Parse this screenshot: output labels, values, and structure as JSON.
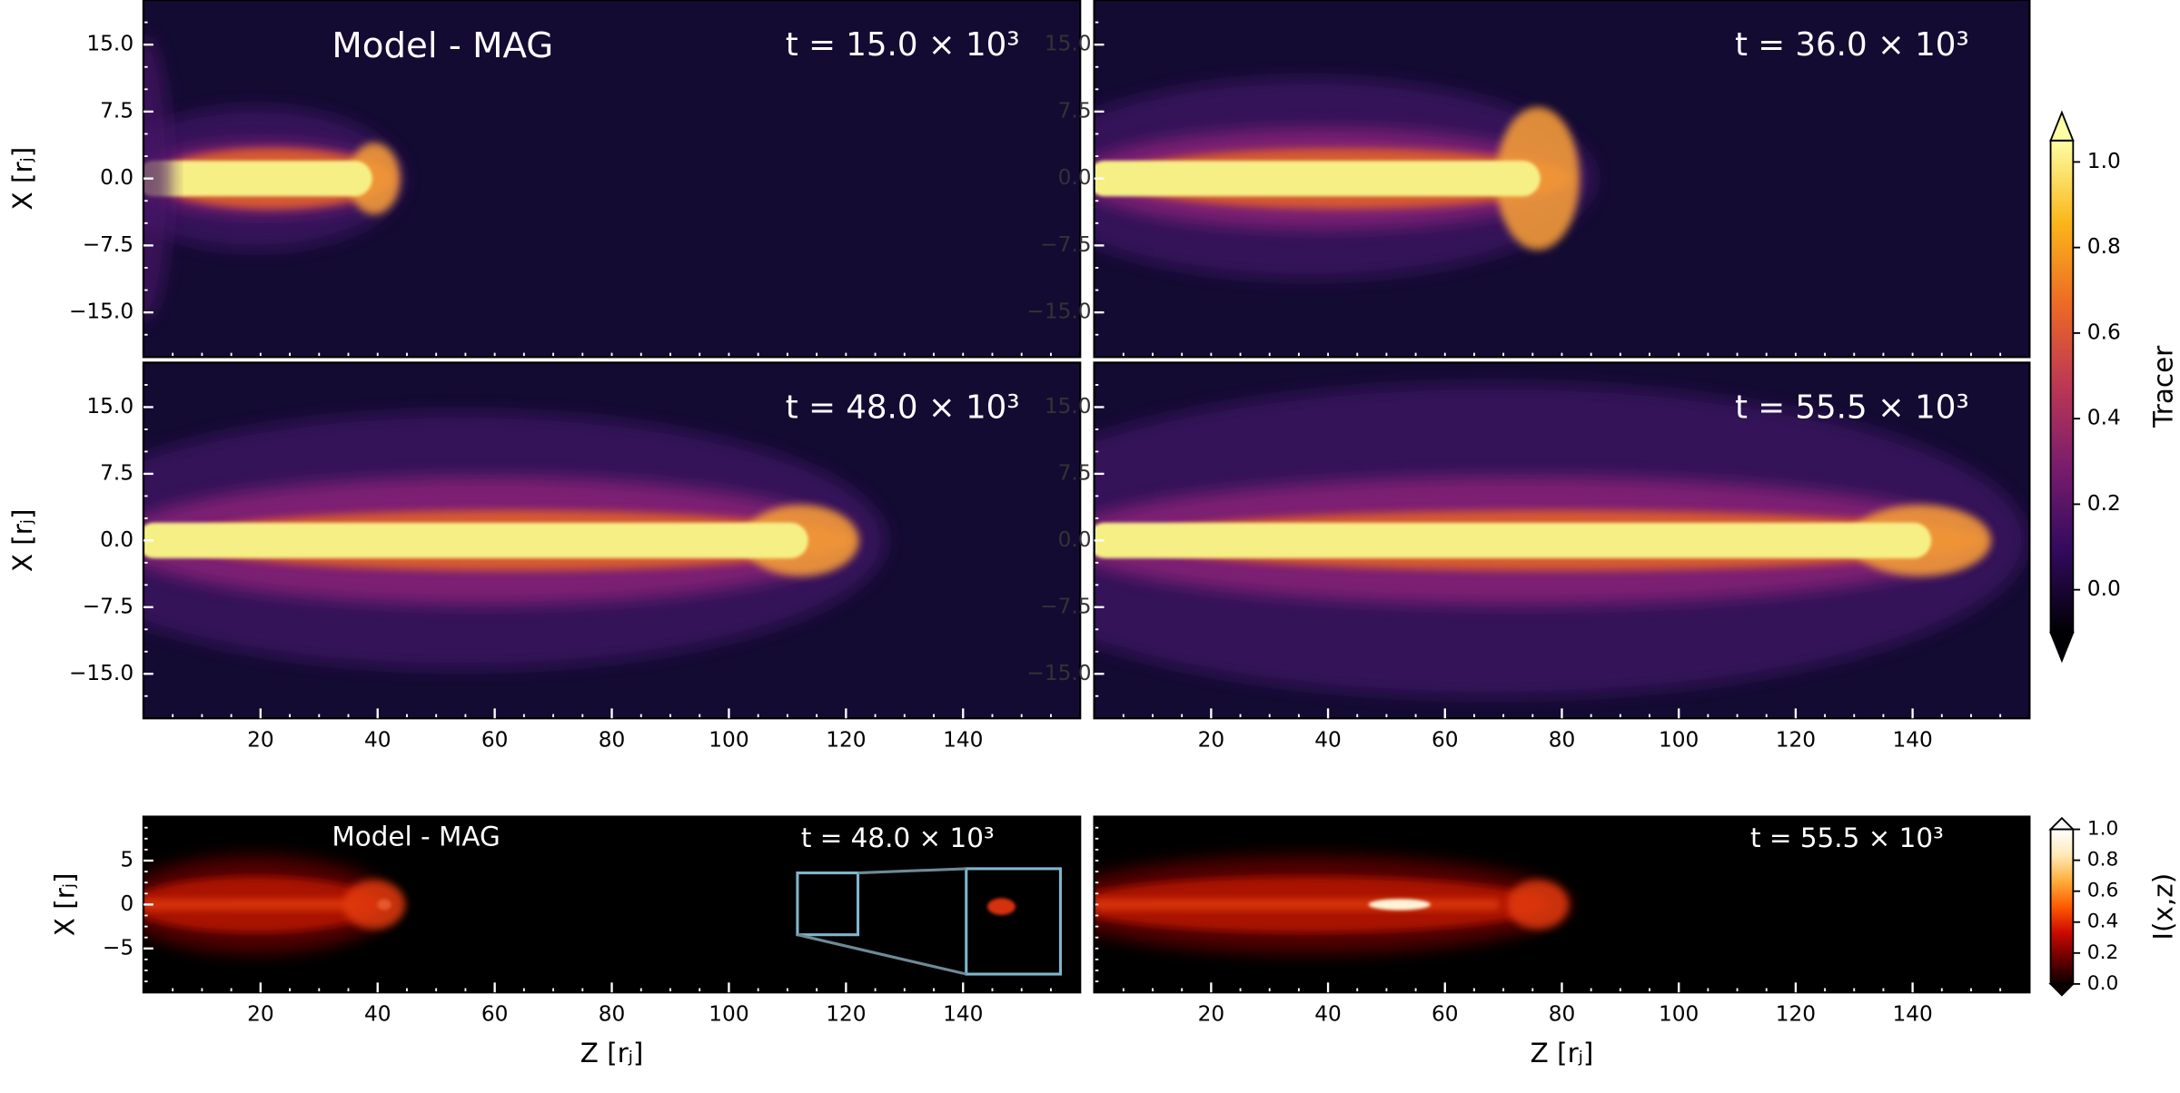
{
  "chart_data": [
    {
      "type": "image",
      "colormap": "inferno",
      "annotation": "Model - MAG",
      "time_label": "t = 15.0 × 10³",
      "xlim": [
        0,
        160
      ],
      "ylim": [
        -20,
        20
      ],
      "ylabel": "X [rⱼ]",
      "yticks": [
        {
          "value": 15,
          "label": "15.0"
        },
        7.5,
        {
          "value": 0,
          "label": "0.0"
        },
        {
          "value": -7.5,
          "label": "−7.5"
        },
        {
          "value": -15,
          "label": "−15.0"
        }
      ]
    },
    {
      "type": "image",
      "colormap": "inferno",
      "time_label": "t = 36.0 × 10³",
      "xlim": [
        0,
        160
      ],
      "ylim": [
        -20,
        20
      ],
      "yticks": [
        {
          "value": 15,
          "label": "15.0"
        },
        7.5,
        {
          "value": 0,
          "label": "0.0"
        },
        {
          "value": -7.5,
          "label": "−7.5"
        },
        {
          "value": -15,
          "label": "−15.0"
        }
      ]
    },
    {
      "type": "image",
      "colormap": "inferno",
      "time_label": "t = 48.0 × 10³",
      "xlim": [
        0,
        160
      ],
      "ylim": [
        -20,
        20
      ],
      "ylabel": "X [rⱼ]",
      "xticks": [
        20,
        40,
        60,
        80,
        100,
        120,
        140
      ],
      "yticks": [
        {
          "value": 15,
          "label": "15.0"
        },
        7.5,
        {
          "value": 0,
          "label": "0.0"
        },
        {
          "value": -7.5,
          "label": "−7.5"
        },
        {
          "value": -15,
          "label": "−15.0"
        }
      ]
    },
    {
      "type": "image",
      "colormap": "inferno",
      "time_label": "t = 55.5 × 10³",
      "xlim": [
        0,
        160
      ],
      "ylim": [
        -20,
        20
      ],
      "xticks": [
        20,
        40,
        60,
        80,
        100,
        120,
        140
      ],
      "yticks": [
        {
          "value": 15,
          "label": "15.0"
        },
        7.5,
        {
          "value": 0,
          "label": "0.0"
        },
        {
          "value": -7.5,
          "label": "−7.5"
        },
        {
          "value": -15,
          "label": "−15.0"
        }
      ]
    },
    {
      "type": "image",
      "colormap": "hot",
      "annotation": "Model - MAG",
      "time_label": "t = 48.0 × 10³",
      "xlim": [
        0,
        160
      ],
      "ylim": [
        -10,
        10
      ],
      "ylabel": "X [rⱼ]",
      "xlabel": "Z [rⱼ]",
      "xticks": [
        20,
        40,
        60,
        80,
        100,
        120,
        140
      ],
      "yticks": [
        5,
        0,
        {
          "value": -5,
          "label": "−5"
        }
      ]
    },
    {
      "type": "image",
      "colormap": "hot",
      "time_label": "t = 55.5 × 10³",
      "xlim": [
        0,
        160
      ],
      "ylim": [
        -10,
        10
      ],
      "xlabel": "Z [rⱼ]",
      "xticks": [
        20,
        40,
        60,
        80,
        100,
        120,
        140
      ]
    },
    {
      "type": "colorbar",
      "label": "Tracer",
      "clim": [
        -0.1,
        1.05
      ],
      "extend": "both",
      "colors": [
        "#000004",
        "#320a5e",
        "#781c6d",
        "#bc3754",
        "#ed6925",
        "#fbb61a",
        "#fcffa4"
      ],
      "ticks": [
        {
          "value": 0,
          "label": "0.0"
        },
        0.2,
        0.4,
        0.6,
        0.8,
        {
          "value": 1,
          "label": "1.0"
        }
      ]
    },
    {
      "type": "colorbar",
      "label": "I(x,z)",
      "clim": [
        0,
        1
      ],
      "extend": "both",
      "colors": [
        "#0b0000",
        "#6b0000",
        "#cc0a00",
        "#ff5a00",
        "#ffae3c",
        "#ffe9b8",
        "#ffffff"
      ],
      "ticks": [
        {
          "value": 0,
          "label": "0.0"
        },
        0.2,
        0.4,
        0.6,
        0.8,
        {
          "value": 1,
          "label": "1.0"
        }
      ]
    }
  ]
}
